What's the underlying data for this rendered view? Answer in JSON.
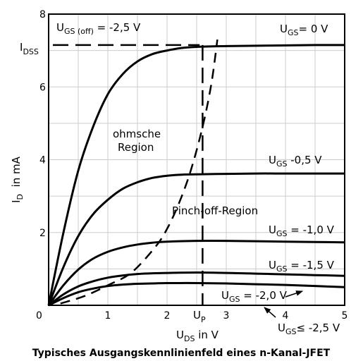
{
  "chart_data": {
    "type": "line",
    "title": "Typisches Ausgangskennlinienfeld eines n-Kanal-JFET",
    "xlabel": {
      "main": "U",
      "sub": "DS",
      "rest": " in V"
    },
    "ylabel": {
      "main": "I",
      "sub": "D",
      "rest": "  in mA"
    },
    "xlim": [
      0,
      5
    ],
    "ylim": [
      0,
      8
    ],
    "grid": true,
    "x_ticks": [
      {
        "value": 1,
        "label": "1"
      },
      {
        "value": 2,
        "label": "2"
      },
      {
        "value": 3,
        "label": "3"
      },
      {
        "value": 4,
        "label": "4"
      },
      {
        "value": 5,
        "label": "5"
      }
    ],
    "y_ticks": [
      {
        "value": 2,
        "label": "2"
      },
      {
        "value": 4,
        "label": "4"
      },
      {
        "value": 6,
        "label": "6"
      },
      {
        "value": 8,
        "label": "8"
      }
    ],
    "origin_label": "0",
    "series": [
      {
        "name": "U_GS = 0 V",
        "x": [
          0,
          0.25,
          0.5,
          0.75,
          1.0,
          1.25,
          1.5,
          1.75,
          2.0,
          2.25,
          2.5,
          3.0,
          3.5,
          4.0,
          4.5,
          5.0
        ],
        "y": [
          0,
          2.0,
          3.7,
          4.9,
          5.8,
          6.35,
          6.7,
          6.9,
          7.0,
          7.07,
          7.1,
          7.12,
          7.13,
          7.14,
          7.15,
          7.15
        ]
      },
      {
        "name": "U_GS = -0,5 V",
        "x": [
          0,
          0.25,
          0.5,
          0.75,
          1.0,
          1.25,
          1.5,
          1.75,
          2.0,
          2.25,
          2.5,
          3.0,
          3.5,
          4.0,
          4.5,
          5.0
        ],
        "y": [
          0,
          1.05,
          1.9,
          2.5,
          2.9,
          3.2,
          3.38,
          3.5,
          3.56,
          3.59,
          3.6,
          3.61,
          3.62,
          3.62,
          3.62,
          3.62
        ]
      },
      {
        "name": "U_GS = -1,0 V",
        "x": [
          0,
          0.25,
          0.5,
          0.75,
          1.0,
          1.25,
          1.5,
          1.75,
          2.0,
          2.5,
          3.0,
          3.5,
          4.0,
          4.5,
          5.0
        ],
        "y": [
          0,
          0.55,
          0.98,
          1.28,
          1.47,
          1.59,
          1.67,
          1.72,
          1.75,
          1.77,
          1.77,
          1.76,
          1.75,
          1.74,
          1.73
        ]
      },
      {
        "name": "U_GS = -1,5 V",
        "x": [
          0,
          0.25,
          0.5,
          0.75,
          1.0,
          1.25,
          1.5,
          1.75,
          2.0,
          2.5,
          3.0,
          3.5,
          4.0,
          4.5,
          5.0
        ],
        "y": [
          0,
          0.3,
          0.52,
          0.66,
          0.76,
          0.82,
          0.86,
          0.88,
          0.89,
          0.9,
          0.89,
          0.87,
          0.85,
          0.83,
          0.81
        ]
      },
      {
        "name": "U_GS = -2,0 V",
        "x": [
          0,
          0.25,
          0.5,
          0.75,
          1.0,
          1.25,
          1.5,
          1.75,
          2.0,
          2.5,
          3.0,
          3.5,
          4.0,
          4.5,
          5.0
        ],
        "y": [
          0,
          0.2,
          0.36,
          0.46,
          0.53,
          0.57,
          0.59,
          0.6,
          0.61,
          0.61,
          0.6,
          0.58,
          0.56,
          0.53,
          0.5
        ]
      }
    ],
    "pinch_off_boundary": {
      "x": [
        0.2,
        0.6,
        1.0,
        1.4,
        1.8,
        2.0,
        2.2,
        2.4,
        2.6,
        2.75,
        2.85
      ],
      "y": [
        0.05,
        0.25,
        0.55,
        0.9,
        1.6,
        2.1,
        2.8,
        3.7,
        4.9,
        6.1,
        7.3
      ]
    },
    "idss": {
      "value": 7.15,
      "label": {
        "main": "I",
        "sub": "DSS"
      }
    },
    "up": {
      "value": 2.6,
      "label": {
        "main": "U",
        "sub": "P"
      }
    },
    "annotations": {
      "ugs_off": {
        "main": "U",
        "sub": "GS (off)",
        "rest": " = -2,5 V"
      },
      "curve_labels": [
        {
          "main": "U",
          "sub": "GS",
          "rest": "= 0 V"
        },
        {
          "main": "U",
          "sub": "GS",
          "rest": " -0,5 V"
        },
        {
          "main": "U",
          "sub": "GS",
          "rest": " = -1,0 V"
        },
        {
          "main": "U",
          "sub": "GS",
          "rest": " = -1,5 V"
        },
        {
          "main": "U",
          "sub": "GS",
          "rest": " = -2,0 V"
        },
        {
          "main": "U",
          "sub": "GS",
          "rest": "≤ -2,5 V"
        }
      ],
      "ohmic_line1": "ohmsche",
      "ohmic_line2": "Region",
      "pinchoff": "Pinch-off-Region"
    }
  }
}
